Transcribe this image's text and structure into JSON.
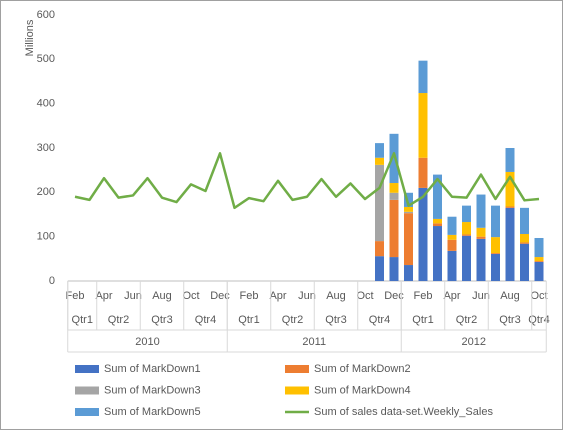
{
  "chart_data": {
    "type": "combo",
    "y_label": "Millions",
    "categories": [
      "Feb",
      null,
      "Apr",
      null,
      "Jun",
      null,
      "Aug",
      null,
      "Oct",
      null,
      "Dec",
      null,
      "Feb",
      null,
      "Apr",
      null,
      "Jun",
      null,
      "Aug",
      null,
      "Oct",
      null,
      "Dec",
      null,
      "Feb",
      null,
      "Apr",
      null,
      "Jun",
      null,
      "Aug",
      null,
      "Oct"
    ],
    "quarters": [
      "Qtr1",
      "Qtr2",
      "Qtr3",
      "Qtr4",
      "Qtr1",
      "Qtr2",
      "Qtr3",
      "Qtr4",
      "Qtr1",
      "Qtr2",
      "Qtr3",
      "Qtr4"
    ],
    "years": [
      "2010",
      "2011",
      "2012"
    ],
    "ylim": [
      0,
      600
    ],
    "yticks": [
      0,
      100,
      200,
      300,
      400,
      500,
      600
    ],
    "series": [
      {
        "name": "Sum of MarkDown1",
        "type": "bar",
        "color": "#4472c4",
        "values": [
          null,
          null,
          null,
          null,
          null,
          null,
          null,
          null,
          null,
          null,
          null,
          null,
          null,
          null,
          null,
          null,
          null,
          null,
          null,
          null,
          null,
          56,
          54,
          36,
          210,
          124,
          68,
          102,
          95,
          61,
          165,
          84,
          43
        ]
      },
      {
        "name": "Sum of MarkDown2",
        "type": "bar",
        "color": "#ed7d31",
        "values": [
          null,
          null,
          null,
          null,
          null,
          null,
          null,
          null,
          null,
          null,
          null,
          null,
          null,
          null,
          null,
          null,
          null,
          null,
          null,
          null,
          null,
          34,
          129,
          117,
          68,
          6,
          25,
          3,
          5,
          2,
          3,
          3,
          2
        ]
      },
      {
        "name": "Sum of MarkDown3",
        "type": "bar",
        "color": "#a5a5a5",
        "values": [
          null,
          null,
          null,
          null,
          null,
          null,
          null,
          null,
          null,
          null,
          null,
          null,
          null,
          null,
          null,
          null,
          null,
          null,
          null,
          null,
          null,
          172,
          16,
          3,
          0,
          0,
          0,
          0,
          0,
          0,
          0,
          0,
          0
        ]
      },
      {
        "name": "Sum of MarkDown4",
        "type": "bar",
        "color": "#ffc000",
        "values": [
          null,
          null,
          null,
          null,
          null,
          null,
          null,
          null,
          null,
          null,
          null,
          null,
          null,
          null,
          null,
          null,
          null,
          null,
          null,
          null,
          null,
          16,
          22,
          11,
          146,
          10,
          11,
          28,
          20,
          36,
          78,
          19,
          9
        ]
      },
      {
        "name": "Sum of MarkDown5",
        "type": "bar",
        "color": "#5b9bd5",
        "values": [
          null,
          null,
          null,
          null,
          null,
          null,
          null,
          null,
          null,
          null,
          null,
          null,
          null,
          null,
          null,
          null,
          null,
          null,
          null,
          null,
          null,
          33,
          111,
          32,
          73,
          100,
          41,
          37,
          75,
          71,
          54,
          59,
          43
        ]
      },
      {
        "name": "Sum of sales data-set.Weekly_Sales",
        "type": "line",
        "color": "#70ad47",
        "values": [
          190,
          183,
          232,
          188,
          193,
          232,
          188,
          178,
          218,
          203,
          288,
          165,
          187,
          180,
          226,
          183,
          190,
          230,
          190,
          220,
          185,
          210,
          288,
          170,
          190,
          230,
          190,
          188,
          240,
          185,
          235,
          182,
          185
        ]
      }
    ]
  }
}
